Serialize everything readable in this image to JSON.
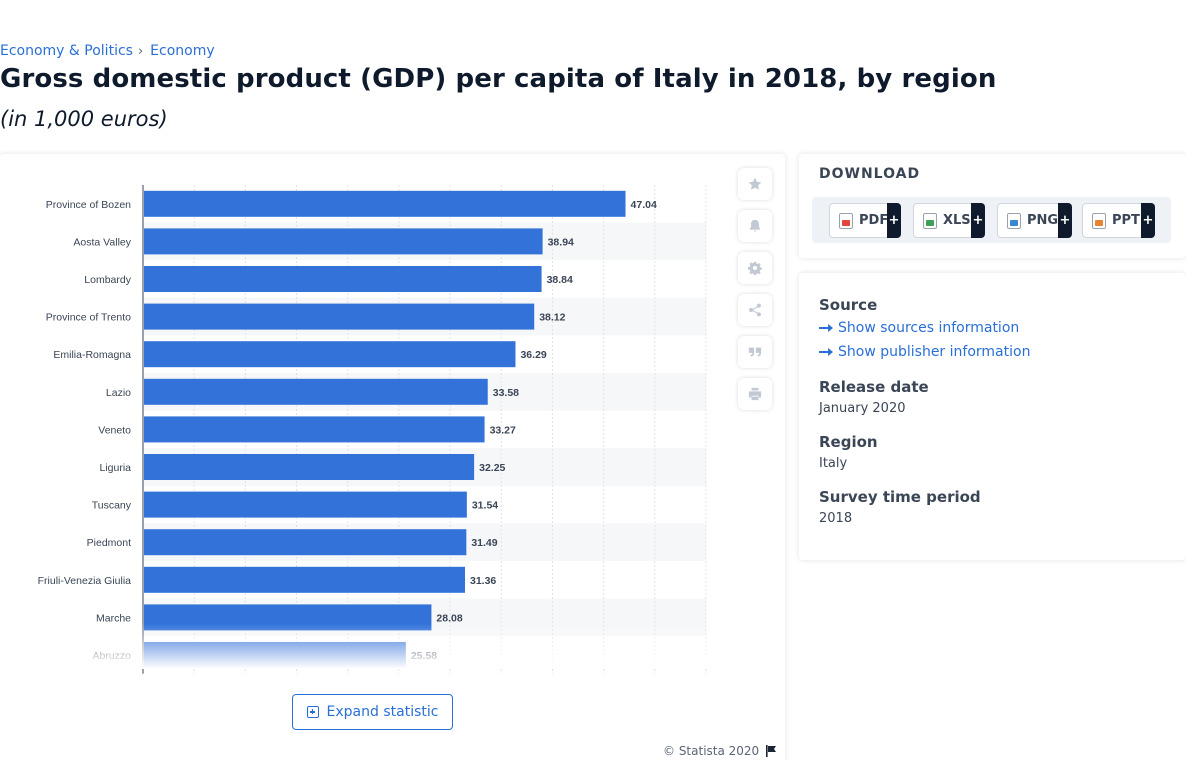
{
  "breadcrumb": {
    "item1": "Economy & Politics",
    "separator": "›",
    "item2": "Economy"
  },
  "header": {
    "title": "Gross domestic product (GDP) per capita of Italy in 2018, by region",
    "subtitle": "(in 1,000 euros)"
  },
  "chart_data": {
    "type": "bar",
    "orientation": "horizontal",
    "categories": [
      "Province of Bozen",
      "Aosta Valley",
      "Lombardy",
      "Province of Trento",
      "Emilia-Romagna",
      "Lazio",
      "Veneto",
      "Liguria",
      "Tuscany",
      "Piedmont",
      "Friuli-Venezia Giulia",
      "Marche",
      "Abruzzo"
    ],
    "values": [
      47.04,
      38.94,
      38.84,
      38.12,
      36.29,
      33.58,
      33.27,
      32.25,
      31.54,
      31.49,
      31.36,
      28.08,
      25.58
    ],
    "value_labels": [
      "47.04",
      "38.94",
      "38.84",
      "38.12",
      "36.29",
      "33.58",
      "33.27",
      "32.25",
      "31.54",
      "31.49",
      "31.36",
      "28.08",
      "25.58"
    ],
    "xlim": [
      0,
      55
    ],
    "grid": true,
    "bar_color": "#3373d9"
  },
  "tools": {
    "icons": [
      "star-icon",
      "bell-icon",
      "gear-icon",
      "share-icon",
      "quote-icon",
      "print-icon"
    ]
  },
  "expand": {
    "label": "Expand statistic"
  },
  "copyright": {
    "text": "© Statista 2020"
  },
  "download": {
    "title": "DOWNLOAD",
    "buttons": [
      {
        "label": "PDF",
        "plus": "+",
        "color": "#e0463a"
      },
      {
        "label": "XLS",
        "plus": "+",
        "color": "#3da05a"
      },
      {
        "label": "PNG",
        "plus": "+",
        "color": "#3b86d4"
      },
      {
        "label": "PPT",
        "plus": "+",
        "color": "#e8832e"
      }
    ]
  },
  "info": {
    "source_heading": "Source",
    "show_sources": "Show sources information",
    "show_publisher": "Show publisher information",
    "release_heading": "Release date",
    "release_value": "January 2020",
    "region_heading": "Region",
    "region_value": "Italy",
    "survey_heading": "Survey time period",
    "survey_value": "2018"
  }
}
